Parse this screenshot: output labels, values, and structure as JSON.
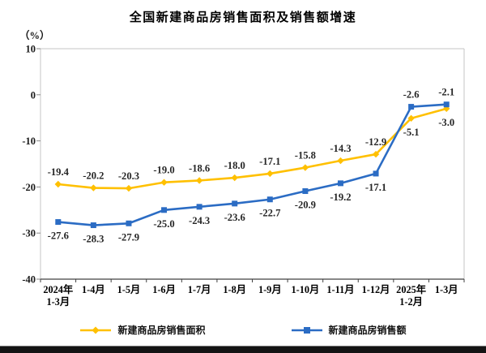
{
  "page": {
    "title": "全国新建商品房销售面积及销售额增速",
    "unit_label": "（%）"
  },
  "chart_data": {
    "type": "line",
    "title": "全国新建商品房销售面积及销售额增速",
    "ylabel": "（%）",
    "xlabel": "",
    "ylim": [
      -40,
      10
    ],
    "yticks": [
      10,
      0,
      -10,
      -20,
      -30,
      -40
    ],
    "grid": false,
    "legend_position": "bottom",
    "categories": [
      [
        "2024年",
        "1-3月"
      ],
      [
        "1-4月"
      ],
      [
        "1-5月"
      ],
      [
        "1-6月"
      ],
      [
        "1-7月"
      ],
      [
        "1-8月"
      ],
      [
        "1-9月"
      ],
      [
        "1-10月"
      ],
      [
        "1-11月"
      ],
      [
        "1-12月"
      ],
      [
        "2025年",
        "1-2月"
      ],
      [
        "1-3月"
      ]
    ],
    "series": [
      {
        "name": "新建商品房销售面积",
        "color": "#FFC000",
        "marker": "diamond",
        "values": [
          -19.4,
          -20.2,
          -20.3,
          -19.0,
          -18.6,
          -18.0,
          -17.1,
          -15.8,
          -14.3,
          -12.9,
          -5.1,
          -3.0
        ],
        "label_side": "above",
        "label_side_overrides": {
          "10": "below",
          "11": "below"
        }
      },
      {
        "name": "新建商品房销售额",
        "color": "#2B6CC4",
        "marker": "square",
        "values": [
          -27.6,
          -28.3,
          -27.9,
          -25.0,
          -24.3,
          -23.6,
          -22.7,
          -20.9,
          -19.2,
          -17.1,
          -2.6,
          -2.1
        ],
        "label_side": "below",
        "label_side_overrides": {
          "10": "above",
          "11": "above"
        }
      }
    ],
    "axis_colors": {
      "box_border": "#c6c6c6",
      "bottom_axis": "#404040",
      "tick": "#8a8a8a"
    }
  }
}
